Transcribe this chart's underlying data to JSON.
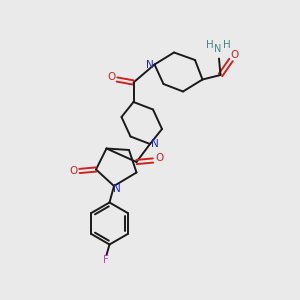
{
  "background_color": "#eaeaea",
  "bond_color": "#1a1a1a",
  "nitrogen_color": "#2222cc",
  "oxygen_color": "#cc2222",
  "fluorine_color": "#bb44bb",
  "nh2_color": "#448888",
  "figsize": [
    3.0,
    3.0
  ],
  "dpi": 100,
  "xlim": [
    0,
    10
  ],
  "ylim": [
    0,
    10
  ],
  "lw": 1.4,
  "fs": 7.5
}
